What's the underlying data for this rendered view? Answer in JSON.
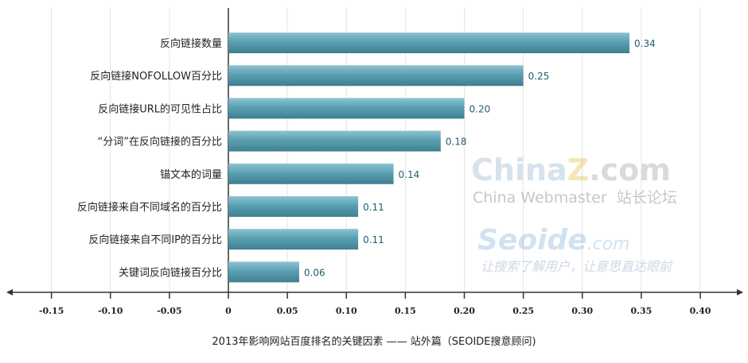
{
  "chart_data": {
    "type": "bar",
    "orientation": "horizontal",
    "title": "2013年影响网站百度排名的关键因素 —— 站外篇（SEOIDE搜意顾问)",
    "categories": [
      "反向链接数量",
      "反向链接NOFOLLOW百分比",
      "反向链接URL的可见性占比",
      "“分词”在反向链接的百分比",
      "锚文本的词量",
      "反向链接来自不同域名的百分比",
      "反向链接来自不同IP的百分比",
      "关键词反向链接百分比"
    ],
    "values": [
      0.34,
      0.25,
      0.2,
      0.18,
      0.14,
      0.11,
      0.11,
      0.06
    ],
    "value_labels": [
      "0.34",
      "0.25",
      "0.20",
      "0.18",
      "0.14",
      "0.11",
      "0.11",
      "0.06"
    ],
    "xlim": [
      -0.17,
      0.42
    ],
    "x_ticks": [
      -0.15,
      -0.1,
      -0.05,
      0,
      0.05,
      0.1,
      0.15,
      0.2,
      0.25,
      0.3,
      0.35,
      0.4
    ],
    "x_tick_labels": [
      "-0.15",
      "-0.10",
      "-0.05",
      "0",
      "0.05",
      "0.10",
      "0.15",
      "0.20",
      "0.25",
      "0.30",
      "0.35",
      "0.40"
    ],
    "grid": true,
    "bar_color": "#5a9fb0"
  },
  "watermarks": {
    "chinaz": "ChinaZ.com",
    "chinaz_sub": "China Webmaster  站长论坛",
    "seoide": "Seoide.com",
    "seoide_sub": "让搜索了解用户，让意思直达眼前"
  }
}
